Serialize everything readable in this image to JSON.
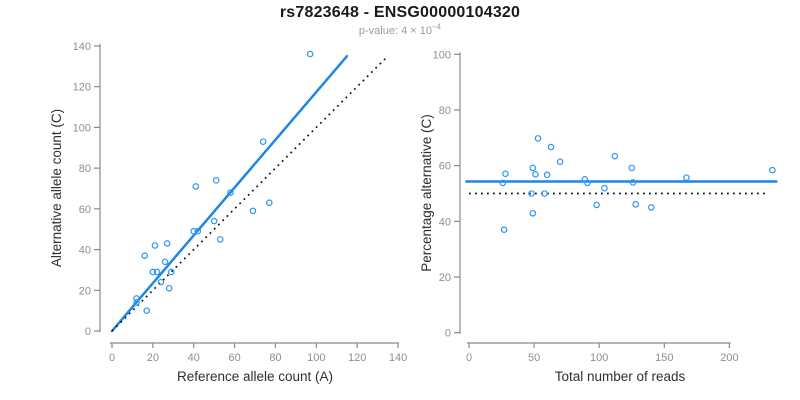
{
  "header": {
    "title": "rs7823648 - ENSG00000104320",
    "subtitle_text": "p-value: 4 × 10",
    "subtitle_exponent": "−4"
  },
  "colors": {
    "regression_blue": "#1E86E6",
    "point_blue": "#2E96F5",
    "identity_black": "#141414",
    "axis": "#8a8a8a",
    "tick_label": "#8e8e8e",
    "axis_title": "#2f2f2f",
    "subtitle_gray": "#9b9b9b"
  },
  "chart_data": [
    {
      "id": "allele-count-scatter",
      "type": "scatter",
      "xlabel": "Reference allele count (A)",
      "ylabel": "Alternative allele count (C)",
      "xlim": [
        0,
        140
      ],
      "ylim": [
        0,
        140
      ],
      "xticks": [
        0,
        20,
        40,
        60,
        80,
        100,
        120,
        140
      ],
      "yticks": [
        0,
        20,
        40,
        60,
        80,
        100,
        120,
        140
      ],
      "grid": false,
      "legend": null,
      "points": [
        [
          12,
          14
        ],
        [
          12,
          16
        ],
        [
          17,
          10
        ],
        [
          16,
          37
        ],
        [
          20,
          29
        ],
        [
          21,
          42
        ],
        [
          22,
          29
        ],
        [
          24,
          24
        ],
        [
          26,
          34
        ],
        [
          27,
          43
        ],
        [
          28,
          21
        ],
        [
          29,
          29
        ],
        [
          40,
          49
        ],
        [
          42,
          49
        ],
        [
          50,
          54
        ],
        [
          53,
          45
        ],
        [
          41,
          71
        ],
        [
          51,
          74
        ],
        [
          58,
          68
        ],
        [
          69,
          59
        ],
        [
          77,
          63
        ],
        [
          74,
          93
        ],
        [
          97,
          136
        ]
      ],
      "lines": [
        {
          "name": "regression-line",
          "x1": 0,
          "y1": 0,
          "x2": 115,
          "y2": 135,
          "style": "solid",
          "color_key": "regression_blue"
        },
        {
          "name": "identity-line",
          "x1": 0,
          "y1": 0,
          "x2": 135,
          "y2": 135,
          "style": "dotted",
          "color_key": "identity_black"
        }
      ]
    },
    {
      "id": "percentage-vs-reads-scatter",
      "type": "scatter",
      "xlabel": "Total number of reads",
      "ylabel": "Percentage alternative (C)",
      "xlim": [
        0,
        237
      ],
      "ylim": [
        0,
        100
      ],
      "xticks": [
        0,
        50,
        100,
        150,
        200
      ],
      "yticks": [
        0,
        20,
        40,
        60,
        80,
        100
      ],
      "grid": false,
      "legend": null,
      "points": [
        [
          26,
          53.8
        ],
        [
          28,
          57.1
        ],
        [
          27,
          37.0
        ],
        [
          53,
          69.8
        ],
        [
          49,
          59.2
        ],
        [
          63,
          66.7
        ],
        [
          51,
          56.9
        ],
        [
          48,
          50.0
        ],
        [
          60,
          56.7
        ],
        [
          70,
          61.4
        ],
        [
          49,
          42.9
        ],
        [
          58,
          50.0
        ],
        [
          89,
          55.1
        ],
        [
          91,
          53.8
        ],
        [
          104,
          51.9
        ],
        [
          98,
          45.9
        ],
        [
          112,
          63.4
        ],
        [
          125,
          59.2
        ],
        [
          126,
          54.0
        ],
        [
          128,
          46.1
        ],
        [
          140,
          45.0
        ],
        [
          167,
          55.7
        ],
        [
          233,
          58.4
        ]
      ],
      "lines": [
        {
          "name": "mean-percentage-line",
          "x1": -2,
          "y1": 54.3,
          "x2": 236,
          "y2": 54.3,
          "style": "solid",
          "color_key": "regression_blue"
        },
        {
          "name": "expected-50-line",
          "x1": 0,
          "y1": 50,
          "x2": 230,
          "y2": 50,
          "style": "dotted",
          "color_key": "identity_black"
        }
      ]
    }
  ]
}
